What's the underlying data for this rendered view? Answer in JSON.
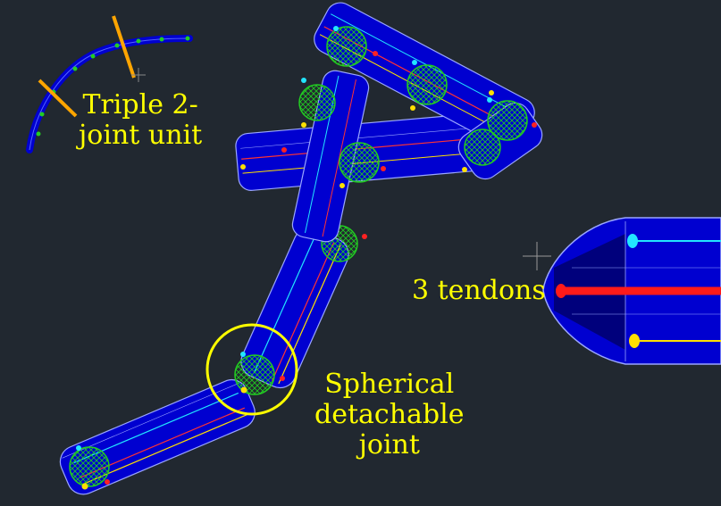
{
  "labels": {
    "triple_unit": [
      "Triple 2-",
      "joint unit"
    ],
    "tendons": "3 tendons",
    "joint": [
      "Spherical",
      "detachable",
      "joint"
    ]
  },
  "colors": {
    "background": "#212830",
    "body_fill": "#0000d0",
    "edge": "#9aa6ff",
    "sphere": "#22cc22",
    "tendon_cyan": "#22e6ff",
    "tendon_red": "#ff1a1a",
    "tendon_yellow": "#ffe000",
    "annotation": "#ffff00",
    "marker": "#ffa500"
  }
}
